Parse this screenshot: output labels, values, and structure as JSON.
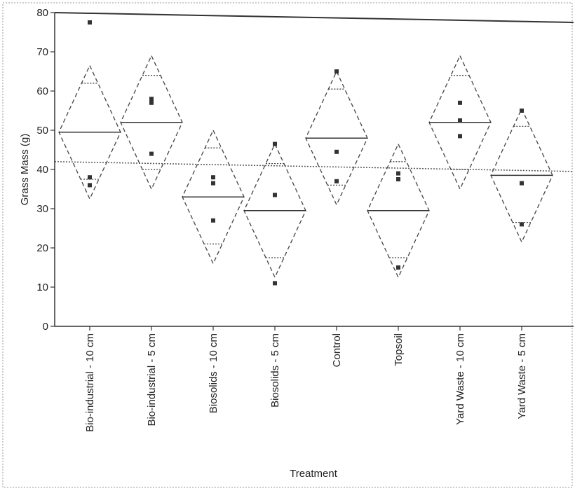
{
  "chart_data": {
    "type": "scatter",
    "subtype": "means-diamonds",
    "xlabel": "Treatment",
    "ylabel": "Grass Mass (g)",
    "ylim": [
      0,
      80
    ],
    "yticks": [
      0,
      10,
      20,
      30,
      40,
      50,
      60,
      70,
      80
    ],
    "grand_mean": 42,
    "categories": [
      "Bio-industrial - 10 cm",
      "Bio-industrial - 5 cm",
      "Biosolids - 10 cm",
      "Biosolids - 5 cm",
      "Control",
      "Topsoil",
      "Yard Waste - 10 cm",
      "Yard Waste - 5 cm"
    ],
    "groups": [
      {
        "mean": 49.5,
        "ci": [
          32.5,
          66.5
        ],
        "overlap": [
          37.5,
          62
        ],
        "points": [
          77.5,
          38,
          36
        ]
      },
      {
        "mean": 52,
        "ci": [
          35,
          69
        ],
        "overlap": [
          40,
          64
        ],
        "points": [
          58,
          57,
          44
        ]
      },
      {
        "mean": 33,
        "ci": [
          16,
          50
        ],
        "overlap": [
          21,
          45.5
        ],
        "points": [
          38,
          36.5,
          27
        ]
      },
      {
        "mean": 29.5,
        "ci": [
          12.5,
          46.5
        ],
        "overlap": [
          17.5,
          41.5
        ],
        "points": [
          46.5,
          33.5,
          11
        ]
      },
      {
        "mean": 48,
        "ci": [
          31,
          65
        ],
        "overlap": [
          36,
          60.5
        ],
        "points": [
          65,
          44.5,
          37
        ]
      },
      {
        "mean": 29.5,
        "ci": [
          12.5,
          46.5
        ],
        "overlap": [
          17.5,
          42
        ],
        "points": [
          39,
          37.5,
          15
        ]
      },
      {
        "mean": 52,
        "ci": [
          35,
          69
        ],
        "overlap": [
          40,
          64
        ],
        "points": [
          57,
          52.5,
          48.5
        ]
      },
      {
        "mean": 38.5,
        "ci": [
          21.5,
          55.5
        ],
        "overlap": [
          26.5,
          51
        ],
        "points": [
          55,
          36.5,
          26
        ]
      }
    ]
  }
}
